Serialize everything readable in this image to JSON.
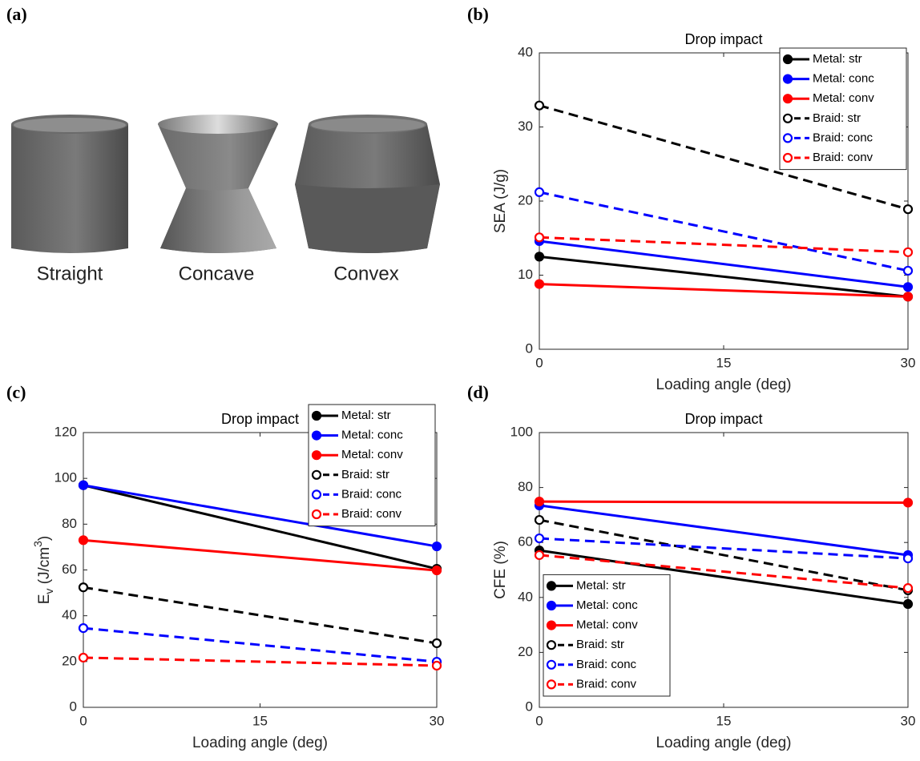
{
  "figure": {
    "panel_labels": [
      "(a)",
      "(b)",
      "(c)",
      "(d)"
    ],
    "shapes": [
      "Straight",
      "Concave",
      "Convex"
    ]
  },
  "chart_data": [
    {
      "type": "line",
      "title": "Drop impact",
      "xlabel": "Loading angle (deg)",
      "ylabel": {
        "text": "SEA (J/g)"
      },
      "x": [
        0,
        30
      ],
      "xlim": [
        0,
        30
      ],
      "xticks": [
        0,
        15,
        30
      ],
      "ylim": [
        0,
        40
      ],
      "yticks": [
        0,
        10,
        20,
        30,
        40
      ],
      "legend": "upper right",
      "series": [
        {
          "name": "Metal: str",
          "color": "#000000",
          "dashed": false,
          "marker": "filled",
          "values": [
            12.5,
            7.1
          ]
        },
        {
          "name": "Metal: conc",
          "color": "#0000ff",
          "dashed": false,
          "marker": "filled",
          "values": [
            14.6,
            8.4
          ]
        },
        {
          "name": "Metal: conv",
          "color": "#ff0000",
          "dashed": false,
          "marker": "filled",
          "values": [
            8.8,
            7.1
          ]
        },
        {
          "name": "Braid: str",
          "color": "#000000",
          "dashed": true,
          "marker": "open",
          "values": [
            32.9,
            18.9
          ]
        },
        {
          "name": "Braid: conc",
          "color": "#0000ff",
          "dashed": true,
          "marker": "open",
          "values": [
            21.2,
            10.6
          ]
        },
        {
          "name": "Braid: conv",
          "color": "#ff0000",
          "dashed": true,
          "marker": "open",
          "values": [
            15.1,
            13.1
          ]
        }
      ]
    },
    {
      "type": "line",
      "title": "Drop impact",
      "xlabel": "Loading angle (deg)",
      "ylabel": {
        "base": "E",
        "sub": "v",
        "unit": " (J/cm",
        "sup": "3",
        "close": ")"
      },
      "x": [
        0,
        30
      ],
      "xlim": [
        0,
        30
      ],
      "xticks": [
        0,
        15,
        30
      ],
      "ylim": [
        0,
        120
      ],
      "yticks": [
        0,
        20,
        40,
        60,
        80,
        100,
        120
      ],
      "legend": "upper right",
      "series": [
        {
          "name": "Metal: str",
          "color": "#000000",
          "dashed": false,
          "marker": "filled",
          "values": [
            97,
            60.5
          ]
        },
        {
          "name": "Metal: conc",
          "color": "#0000ff",
          "dashed": false,
          "marker": "filled",
          "values": [
            97,
            70.3
          ]
        },
        {
          "name": "Metal: conv",
          "color": "#ff0000",
          "dashed": false,
          "marker": "filled",
          "values": [
            73,
            59.8
          ]
        },
        {
          "name": "Braid: str",
          "color": "#000000",
          "dashed": true,
          "marker": "open",
          "values": [
            52.4,
            28
          ]
        },
        {
          "name": "Braid: conc",
          "color": "#0000ff",
          "dashed": true,
          "marker": "open",
          "values": [
            34.6,
            19.9
          ]
        },
        {
          "name": "Braid: conv",
          "color": "#ff0000",
          "dashed": true,
          "marker": "open",
          "values": [
            21.7,
            18.2
          ]
        }
      ]
    },
    {
      "type": "line",
      "title": "Drop impact",
      "xlabel": "Loading angle (deg)",
      "ylabel": {
        "text": "CFE (%)"
      },
      "x": [
        0,
        30
      ],
      "xlim": [
        0,
        30
      ],
      "xticks": [
        0,
        15,
        30
      ],
      "ylim": [
        0,
        100
      ],
      "yticks": [
        0,
        20,
        40,
        60,
        80,
        100
      ],
      "legend": "lower left",
      "series": [
        {
          "name": "Metal: str",
          "color": "#000000",
          "dashed": false,
          "marker": "filled",
          "values": [
            57.1,
            37.6
          ]
        },
        {
          "name": "Metal: conc",
          "color": "#0000ff",
          "dashed": false,
          "marker": "filled",
          "values": [
            73.5,
            55.4
          ]
        },
        {
          "name": "Metal: conv",
          "color": "#ff0000",
          "dashed": false,
          "marker": "filled",
          "values": [
            74.9,
            74.5
          ]
        },
        {
          "name": "Braid: str",
          "color": "#000000",
          "dashed": true,
          "marker": "open",
          "values": [
            68.2,
            42.6
          ]
        },
        {
          "name": "Braid: conc",
          "color": "#0000ff",
          "dashed": true,
          "marker": "open",
          "values": [
            61.5,
            54.2
          ]
        },
        {
          "name": "Braid: conv",
          "color": "#ff0000",
          "dashed": true,
          "marker": "open",
          "values": [
            55.4,
            43.4
          ]
        }
      ]
    }
  ]
}
